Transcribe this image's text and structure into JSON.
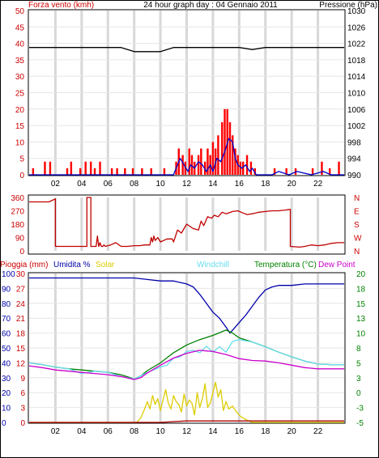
{
  "header": {
    "left": "Forza vento (kmh)",
    "center": "24 hour graph day : 04 Gennaio 2011",
    "right": "Pressione (hPa)"
  },
  "chart_data": [
    {
      "type": "line",
      "panel": "wind-pressure",
      "left_axis": {
        "label": "Forza vento (kmh)",
        "ticks": [
          "0",
          "5",
          "10",
          "15",
          "20",
          "25",
          "30",
          "35",
          "40",
          "45",
          "50"
        ],
        "ylim": [
          0,
          50
        ]
      },
      "right_axis": {
        "label": "Pressione (hPa)",
        "ticks": [
          "990",
          "994",
          "998",
          "1002",
          "1006",
          "1010",
          "1014",
          "1018",
          "1022",
          "1026",
          "1030"
        ],
        "ylim": [
          990,
          1030
        ]
      },
      "x_ticks": [
        "02",
        "04",
        "06",
        "08",
        "10",
        "12",
        "14",
        "16",
        "18",
        "20",
        "22",
        ""
      ],
      "xlim": [
        0,
        24
      ],
      "series": [
        {
          "key": "pressure",
          "axis": "right",
          "color": "#000000",
          "x": [
            0,
            1,
            2,
            3,
            4,
            5,
            6,
            7,
            8,
            9,
            10,
            11,
            12,
            13,
            14,
            15,
            16,
            17,
            18,
            19,
            20,
            21,
            22,
            23,
            24
          ],
          "y": [
            1021,
            1021,
            1021,
            1021,
            1021,
            1021,
            1021,
            1021,
            1020,
            1020,
            1020,
            1021,
            1021,
            1021,
            1021,
            1021,
            1021,
            1020.5,
            1021,
            1021,
            1021,
            1021,
            1021,
            1021,
            1021
          ]
        },
        {
          "key": "gust",
          "axis": "left",
          "color": "#ff0000",
          "style": "bars",
          "x": [
            0.3,
            1.2,
            1.6,
            2.9,
            3.2,
            3.9,
            4.3,
            4.7,
            5.0,
            5.4,
            6.3,
            6.7,
            7.3,
            7.9,
            8.6,
            9.3,
            10.3,
            11.2,
            11.4,
            11.7,
            11.9,
            12.2,
            12.4,
            12.6,
            12.9,
            13.1,
            13.4,
            13.6,
            13.8,
            14.0,
            14.2,
            14.4,
            14.7,
            14.9,
            15.1,
            15.3,
            15.5,
            15.7,
            15.9,
            16.1,
            16.3,
            16.6,
            16.9,
            17.2,
            18.7,
            19.6,
            20.3,
            21.6,
            22.3,
            22.9,
            23.6
          ],
          "y": [
            2,
            4,
            4,
            2,
            4,
            2,
            4,
            4,
            2,
            4,
            2,
            2,
            2,
            2,
            2,
            2,
            2,
            4,
            8,
            6,
            4,
            8,
            6,
            4,
            6,
            8,
            4,
            8,
            6,
            10,
            8,
            12,
            16,
            20,
            20,
            16,
            12,
            8,
            6,
            4,
            4,
            6,
            4,
            2,
            2,
            2,
            2,
            2,
            4,
            2,
            4
          ]
        },
        {
          "key": "wind",
          "axis": "left",
          "color": "#0000cc",
          "x": [
            0,
            11.0,
            11.2,
            11.5,
            11.8,
            12.1,
            12.3,
            12.6,
            12.9,
            13.2,
            13.5,
            13.8,
            14.0,
            14.3,
            14.6,
            14.9,
            15.2,
            15.5,
            15.7,
            15.9,
            16.2,
            16.5,
            16.8,
            17.0,
            17.3,
            18.5,
            19.0,
            19.8,
            20.4,
            21.5,
            22.4,
            23.0,
            24
          ],
          "y": [
            0,
            0,
            2,
            5,
            3,
            1,
            3,
            2,
            4,
            3,
            1,
            3,
            1,
            5,
            4,
            7,
            11,
            10,
            5,
            3,
            2,
            3,
            1,
            2,
            0,
            0,
            1,
            0,
            1,
            0,
            1,
            0,
            0
          ]
        }
      ]
    },
    {
      "type": "line",
      "panel": "direction",
      "left_axis": {
        "ticks": [
          "0",
          "90",
          "180",
          "270",
          "360"
        ],
        "ylim": [
          0,
          360
        ]
      },
      "right_axis": {
        "ticks": [
          "N",
          "E",
          "S",
          "W",
          "N"
        ]
      },
      "series": [
        {
          "key": "direction",
          "color": "#c00000",
          "x": [
            0,
            1.5,
            2.0,
            2.0,
            4.4,
            4.4,
            4.7,
            4.7,
            5.1,
            5.2,
            5.3,
            5.4,
            5.5,
            5.6,
            5.7,
            5.8,
            6.2,
            6.6,
            7.0,
            7.5,
            8.0,
            8.4,
            8.8,
            9.2,
            9.3,
            9.4,
            9.5,
            9.6,
            9.8,
            10.0,
            10.5,
            10.9,
            11.0,
            11.3,
            11.6,
            12.0,
            12.5,
            12.9,
            13.1,
            13.3,
            13.6,
            13.9,
            14.1,
            14.4,
            14.7,
            15.0,
            15.5,
            15.9,
            16.3,
            16.6,
            17.0,
            17.5,
            18.0,
            18.5,
            19.0,
            19.5,
            19.9,
            19.9,
            20.6,
            21.0,
            21.5,
            22.0,
            22.5,
            23.0,
            23.5,
            24
          ],
          "y": [
            330,
            330,
            350,
            30,
            30,
            360,
            360,
            30,
            30,
            100,
            30,
            55,
            30,
            30,
            40,
            30,
            40,
            55,
            30,
            30,
            35,
            35,
            40,
            40,
            90,
            60,
            100,
            70,
            90,
            60,
            80,
            80,
            60,
            140,
            120,
            180,
            150,
            140,
            200,
            170,
            230,
            220,
            240,
            230,
            260,
            250,
            265,
            270,
            255,
            245,
            250,
            260,
            265,
            270,
            270,
            275,
            280,
            30,
            25,
            30,
            40,
            35,
            40,
            50,
            55,
            55
          ]
        }
      ]
    },
    {
      "type": "line",
      "panel": "humidity-temperature",
      "legend": [
        "Pioggia (mm)",
        "Umidita %",
        "Solar",
        "Windchill",
        "Temperatura (°C)",
        "Dew Point"
      ],
      "left_axis_1": {
        "ticks": [
          "0",
          "10",
          "20",
          "30",
          "40",
          "50",
          "60",
          "70",
          "80",
          "90",
          "100"
        ],
        "ylim": [
          0,
          100
        ]
      },
      "left_axis_2": {
        "ticks": [
          "0",
          "3",
          "6",
          "9",
          "12",
          "15",
          "18",
          "21",
          "24",
          "27",
          "30"
        ],
        "ylim": [
          0,
          30
        ]
      },
      "right_axis": {
        "ticks": [
          "-5",
          "-3",
          "0",
          "3",
          "5",
          "8",
          "10",
          "13",
          "15",
          "18",
          "20"
        ],
        "ylim": [
          -5,
          20
        ]
      },
      "x_ticks": [
        "02",
        "04",
        "06",
        "08",
        "10",
        "12",
        "14",
        "16",
        "18",
        "20",
        "22",
        ""
      ],
      "xlim": [
        0,
        24
      ],
      "series": [
        {
          "key": "humidity",
          "name": "Umidita %",
          "axis": "pct",
          "color": "#0000aa",
          "x": [
            0,
            2,
            4,
            6,
            8,
            9,
            10,
            11,
            12,
            12.5,
            13,
            13.5,
            14,
            14.5,
            15,
            15.3,
            15.6,
            16,
            16.5,
            17,
            17.5,
            18,
            18.5,
            19,
            20,
            21,
            22,
            23,
            24
          ],
          "y": [
            97,
            97,
            97,
            97,
            97,
            96,
            95,
            95,
            93,
            91,
            86,
            80,
            74,
            70,
            64,
            60,
            63,
            67,
            72,
            78,
            84,
            89,
            91,
            92,
            92,
            93,
            93,
            93,
            93
          ]
        },
        {
          "key": "temperature",
          "name": "Temperatura (°C)",
          "axis": "temp",
          "color": "#008000",
          "x": [
            0,
            1,
            2,
            3,
            4,
            5,
            6,
            7,
            8,
            8.5,
            9,
            10,
            11,
            12,
            13,
            14,
            15,
            15.5,
            16,
            17,
            18,
            19,
            20,
            21,
            22,
            23,
            24
          ],
          "y": [
            5,
            4.7,
            4.3,
            4.0,
            3.8,
            3.6,
            3.4,
            3.0,
            2.3,
            2.8,
            3.7,
            5.0,
            6.7,
            8.0,
            8.9,
            9.6,
            10.5,
            10.0,
            9.2,
            8.5,
            7.7,
            6.8,
            6.0,
            5.3,
            4.8,
            4.7,
            4.7
          ]
        },
        {
          "key": "windchill",
          "name": "Windchill",
          "axis": "temp",
          "color": "#66ddee",
          "x": [
            0,
            1,
            2,
            3,
            4,
            5,
            6,
            7,
            8,
            8.5,
            9,
            10,
            10.5,
            11,
            11.5,
            12,
            12.5,
            13,
            13.5,
            14,
            14.5,
            15,
            15.5,
            16,
            17,
            18,
            19,
            20,
            21,
            22,
            23,
            24
          ],
          "y": [
            5,
            4.7,
            4.3,
            4.0,
            3.2,
            3.6,
            3.4,
            2.7,
            2.3,
            2.8,
            3.4,
            4.3,
            4.6,
            5.8,
            6.0,
            6.9,
            7.1,
            6.7,
            7.8,
            6.8,
            7.7,
            6.8,
            8.6,
            8.9,
            8.5,
            7.7,
            6.8,
            6.0,
            5.3,
            4.8,
            4.7,
            4.7
          ]
        },
        {
          "key": "dewpoint",
          "name": "Dew Point",
          "axis": "temp",
          "color": "#cc00cc",
          "x": [
            0,
            1,
            2,
            3,
            4,
            5,
            6,
            7,
            8,
            8.5,
            9,
            10,
            11,
            12,
            13,
            14,
            15,
            16,
            17,
            18,
            19,
            20,
            21,
            22,
            23,
            24
          ],
          "y": [
            4.5,
            4.2,
            3.8,
            3.6,
            3.4,
            3.2,
            3.0,
            2.7,
            2.2,
            2.5,
            3.3,
            4.6,
            5.8,
            6.6,
            7.1,
            6.9,
            6.4,
            5.7,
            5.4,
            5.3,
            5.0,
            4.6,
            4.2,
            4.0,
            4.0,
            4.0
          ]
        },
        {
          "key": "solar",
          "name": "Solar",
          "axis": "pct",
          "color": "#ddcc00",
          "x": [
            0,
            8.2,
            8.5,
            8.8,
            9.0,
            9.2,
            9.4,
            9.6,
            9.8,
            10.0,
            10.2,
            10.4,
            10.6,
            10.8,
            11.0,
            11.2,
            11.4,
            11.6,
            11.8,
            12.0,
            12.2,
            12.4,
            12.6,
            12.8,
            13.0,
            13.2,
            13.4,
            13.6,
            13.8,
            14.0,
            14.2,
            14.4,
            14.6,
            14.8,
            15.0,
            15.2,
            15.5,
            15.8,
            16.1,
            16.5,
            17.0,
            24
          ],
          "y": [
            0,
            0,
            3,
            9,
            14,
            9,
            18,
            12,
            16,
            8,
            15,
            22,
            13,
            9,
            18,
            14,
            12,
            7,
            19,
            11,
            15,
            13,
            5,
            20,
            10,
            16,
            26,
            10,
            13,
            20,
            27,
            17,
            22,
            8,
            14,
            9,
            11,
            7,
            4,
            2,
            0,
            0
          ]
        },
        {
          "key": "rain",
          "name": "Pioggia (mm)",
          "axis": "pct",
          "color": "#aa0000",
          "x": [
            0,
            10,
            12,
            24
          ],
          "y": [
            0,
            0,
            1,
            1
          ]
        }
      ]
    }
  ]
}
